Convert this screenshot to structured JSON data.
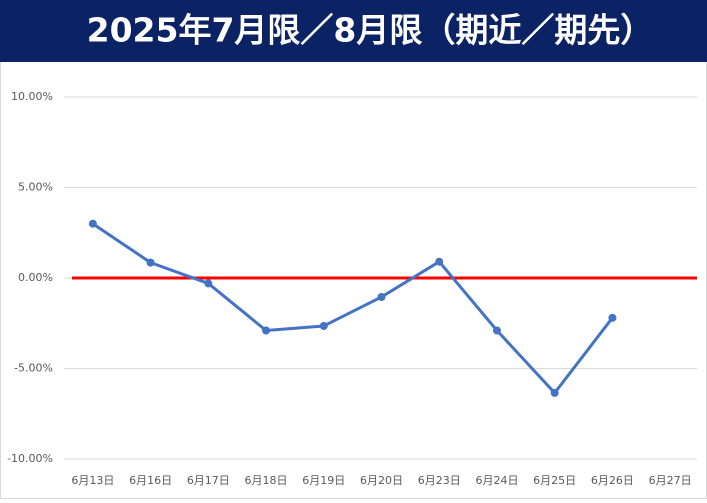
{
  "chart_data": {
    "type": "line",
    "title": "2025年7月限／8月限（期近／期先）",
    "categories": [
      "6月13日",
      "6月16日",
      "6月17日",
      "6月18日",
      "6月19日",
      "6月20日",
      "6月23日",
      "6月24日",
      "6月25日",
      "6月26日",
      "6月27日"
    ],
    "series": [
      {
        "name": "期近／期先",
        "color": "#4472c4",
        "values": [
          3.0,
          0.85,
          -0.3,
          -2.9,
          -2.65,
          -1.05,
          0.9,
          -2.9,
          -6.35,
          -2.2,
          null
        ]
      }
    ],
    "ylim": [
      -10,
      10
    ],
    "yticks": [
      {
        "value": -10,
        "label": "-10.00%"
      },
      {
        "value": -5,
        "label": "-5.00%"
      },
      {
        "value": 0,
        "label": "0.00%"
      },
      {
        "value": 5,
        "label": "5.00%"
      },
      {
        "value": 10,
        "label": "10.00%"
      }
    ],
    "grid": true,
    "zero_line_color": "#ff0000",
    "title_background": "#0b2265"
  }
}
